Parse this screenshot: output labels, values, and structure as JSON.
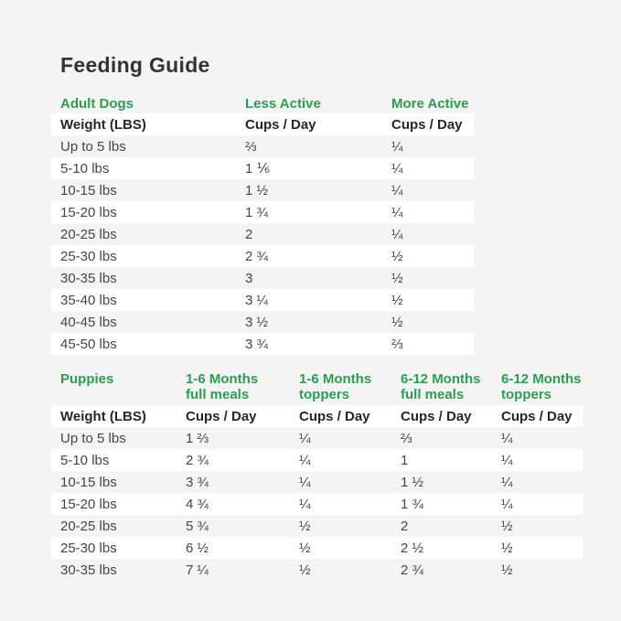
{
  "title": "Feeding Guide",
  "colors": {
    "background": "#f4f4f4",
    "stripe_white": "#ffffff",
    "accent_green": "#2a9e51",
    "heading_text": "#333333",
    "body_text": "#454545"
  },
  "adult": {
    "section_label": "Adult Dogs",
    "column_headers": [
      "Less Active",
      "More Active"
    ],
    "weight_header": "Weight (LBS)",
    "cups_header": "Cups / Day",
    "rows": [
      {
        "weight": "Up to 5 lbs",
        "less_active": "⅔",
        "more_active": "¼"
      },
      {
        "weight": "5-10 lbs",
        "less_active": "1 ⅙",
        "more_active": "¼"
      },
      {
        "weight": "10-15 lbs",
        "less_active": "1 ½",
        "more_active": "¼"
      },
      {
        "weight": "15-20 lbs",
        "less_active": "1 ¾",
        "more_active": "¼"
      },
      {
        "weight": "20-25 lbs",
        "less_active": "2",
        "more_active": "¼"
      },
      {
        "weight": "25-30 lbs",
        "less_active": "2 ¾",
        "more_active": "½"
      },
      {
        "weight": "30-35 lbs",
        "less_active": "3",
        "more_active": "½"
      },
      {
        "weight": "35-40 lbs",
        "less_active": "3 ¼",
        "more_active": "½"
      },
      {
        "weight": "40-45 lbs",
        "less_active": "3 ½",
        "more_active": "½"
      },
      {
        "weight": "45-50 lbs",
        "less_active": "3 ¾",
        "more_active": "⅔"
      }
    ]
  },
  "puppies": {
    "section_label": "Puppies",
    "column_headers": [
      {
        "line1": "1-6 Months",
        "line2": "full meals"
      },
      {
        "line1": "1-6 Months",
        "line2": "toppers"
      },
      {
        "line1": "6-12 Months",
        "line2": "full meals"
      },
      {
        "line1": "6-12 Months",
        "line2": "toppers"
      }
    ],
    "weight_header": "Weight (LBS)",
    "cups_header": "Cups / Day",
    "rows": [
      {
        "weight": "Up to 5 lbs",
        "full_1_6": "1 ⅔",
        "toppers_1_6": "¼",
        "full_6_12": "⅔",
        "toppers_6_12": "¼"
      },
      {
        "weight": "5-10 lbs",
        "full_1_6": "2 ¾",
        "toppers_1_6": "¼",
        "full_6_12": "1",
        "toppers_6_12": "¼"
      },
      {
        "weight": "10-15 lbs",
        "full_1_6": "3 ¾",
        "toppers_1_6": "¼",
        "full_6_12": "1 ½",
        "toppers_6_12": "¼"
      },
      {
        "weight": "15-20 lbs",
        "full_1_6": "4 ¾",
        "toppers_1_6": "¼",
        "full_6_12": "1 ¾",
        "toppers_6_12": "¼"
      },
      {
        "weight": "20-25 lbs",
        "full_1_6": "5 ¾",
        "toppers_1_6": "½",
        "full_6_12": "2",
        "toppers_6_12": "½"
      },
      {
        "weight": "25-30 lbs",
        "full_1_6": "6 ½",
        "toppers_1_6": "½",
        "full_6_12": "2 ½",
        "toppers_6_12": "½"
      },
      {
        "weight": "30-35 lbs",
        "full_1_6": "7 ¼",
        "toppers_1_6": "½",
        "full_6_12": "2 ¾",
        "toppers_6_12": "½"
      }
    ]
  }
}
